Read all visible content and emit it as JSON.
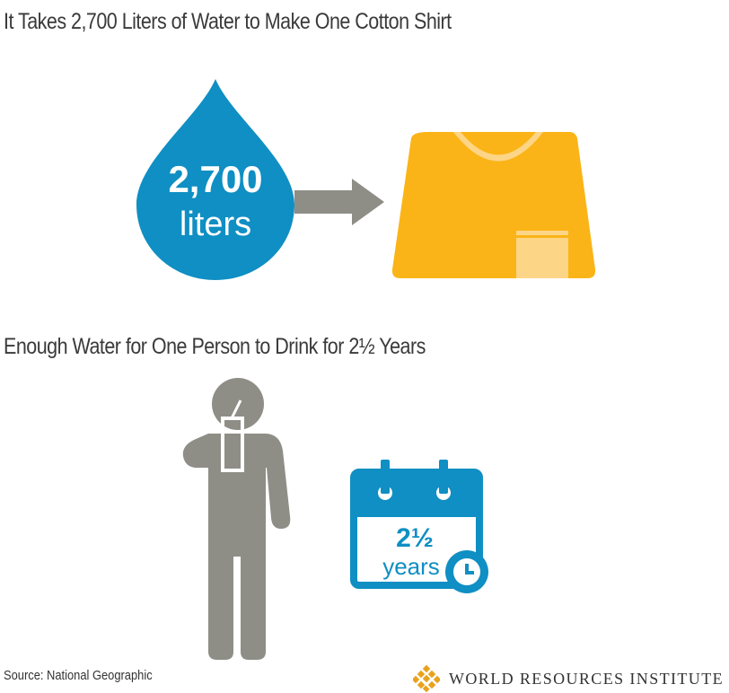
{
  "title_top": "It Takes 2,700 Liters of Water to Make One Cotton Shirt",
  "title_bottom": "Enough Water for One Person to Drink for 2½ Years",
  "drop": {
    "value": "2,700",
    "unit": "liters"
  },
  "calendar": {
    "value": "2½",
    "unit": "years"
  },
  "source": "Source: National Geographic",
  "logo_text": "WORLD RESOURCES INSTITUTE",
  "colors": {
    "water_blue": "#0f8fc3",
    "arrow_gray": "#8e8e87",
    "shirt_yellow": "#fbb417",
    "shirt_light": "#fdd586",
    "person_gray": "#8e8e87",
    "logo_gold": "#e8a21d"
  },
  "icons": [
    "water-drop-icon",
    "arrow-right-icon",
    "shirt-icon",
    "person-drinking-icon",
    "calendar-icon",
    "clock-icon",
    "wri-logo-icon"
  ]
}
